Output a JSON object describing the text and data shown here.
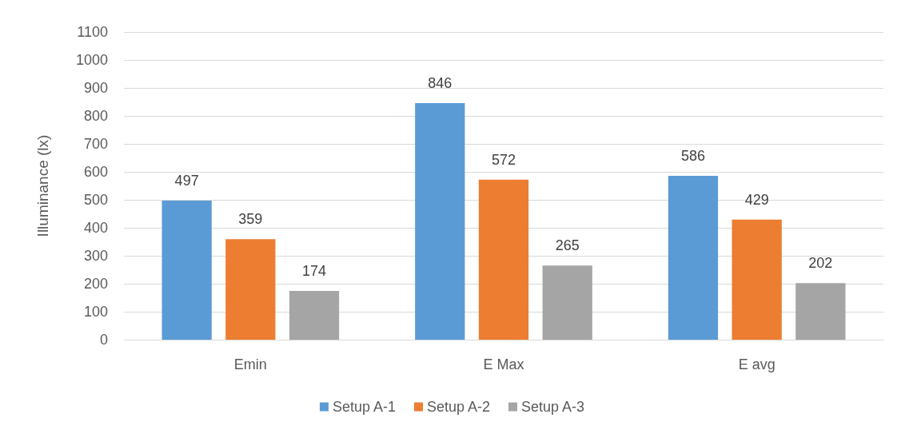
{
  "chart_data": {
    "type": "bar",
    "ylabel": "Illuminance (lx)",
    "categories": [
      "Emin",
      "E Max",
      "E avg"
    ],
    "series": [
      {
        "name": "Setup A-1",
        "color": "#5b9bd5",
        "values": [
          497,
          846,
          586
        ]
      },
      {
        "name": "Setup A-2",
        "color": "#ed7d31",
        "values": [
          359,
          572,
          429
        ]
      },
      {
        "name": "Setup A-3",
        "color": "#a5a5a5",
        "values": [
          174,
          265,
          202
        ]
      }
    ],
    "ylim": [
      0,
      1100
    ],
    "yticks": [
      0,
      100,
      200,
      300,
      400,
      500,
      600,
      700,
      800,
      900,
      1000,
      1100
    ],
    "grid": "y",
    "legend": "bottom",
    "data_labels": true
  }
}
